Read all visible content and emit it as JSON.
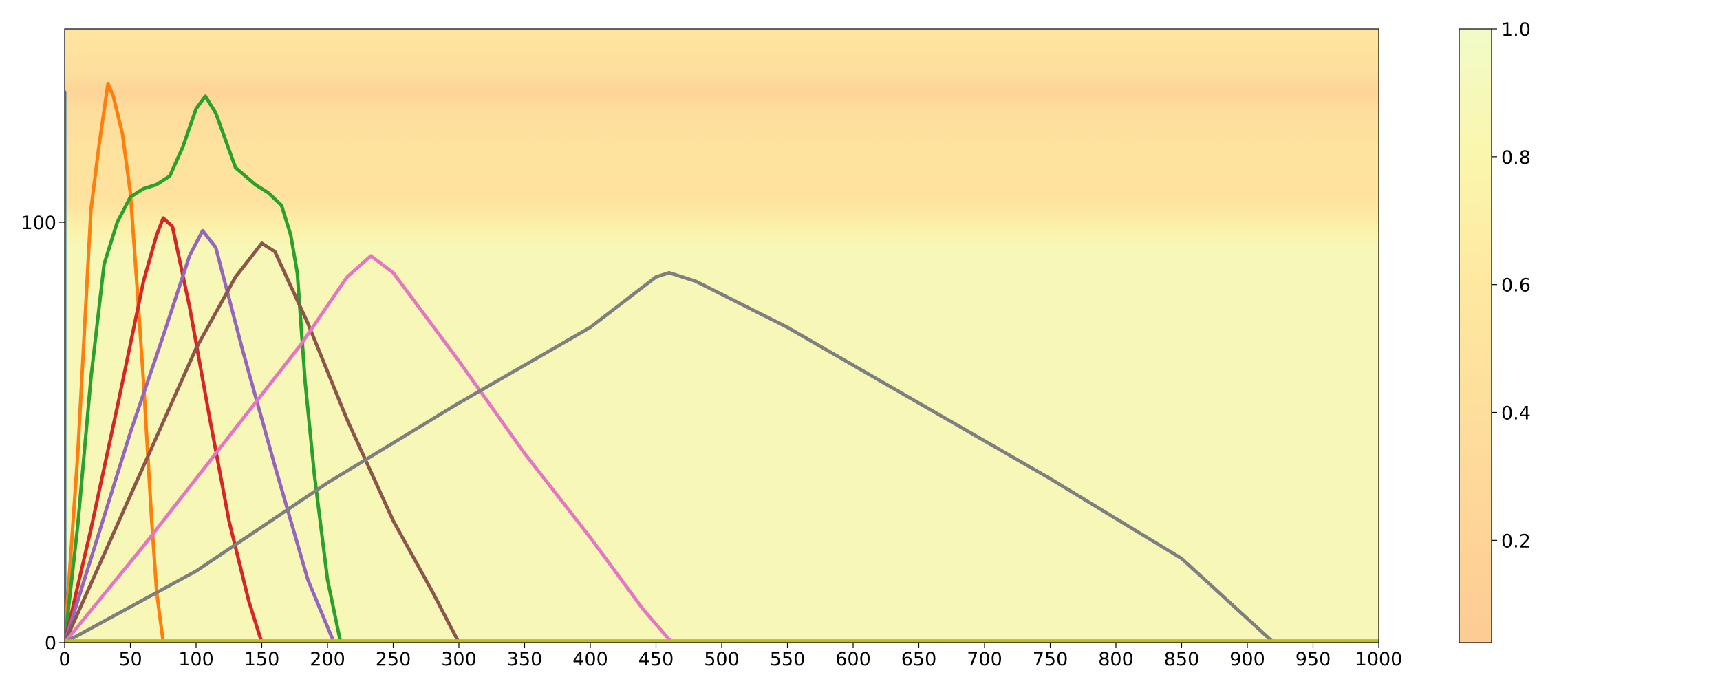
{
  "chart_data": {
    "type": "line",
    "title": "",
    "xlabel": "",
    "ylabel": "",
    "xlim": [
      0,
      1000
    ],
    "ylim": [
      0,
      146
    ],
    "x_ticks": [
      "0",
      "50",
      "100",
      "150",
      "200",
      "250",
      "300",
      "350",
      "400",
      "450",
      "500",
      "550",
      "600",
      "650",
      "700",
      "750",
      "800",
      "850",
      "900",
      "950",
      "1000"
    ],
    "y_ticks": [
      "0",
      "100"
    ],
    "grid": false,
    "legend": "none",
    "background": {
      "type": "heatmap",
      "description_of_scale": "colorbar",
      "colorbar_ticks": [
        "0.2",
        "0.4",
        "0.6",
        "0.8",
        "1.0"
      ],
      "colorbar_range": [
        0.04,
        1.0
      ],
      "profile_y_to_value": [
        {
          "y": 0,
          "v": 0.88
        },
        {
          "y": 94,
          "v": 0.88
        },
        {
          "y": 99,
          "v": 0.72
        },
        {
          "y": 105,
          "v": 0.48
        },
        {
          "y": 116,
          "v": 0.5
        },
        {
          "y": 127,
          "v": 0.38
        },
        {
          "y": 131,
          "v": 0.18
        },
        {
          "y": 135,
          "v": 0.4
        },
        {
          "y": 146,
          "v": 0.54
        }
      ],
      "colormap_stops": [
        {
          "v": 0.04,
          "color": "#fdcb94"
        },
        {
          "v": 0.3,
          "color": "#fed99a"
        },
        {
          "v": 0.6,
          "color": "#fee8a0"
        },
        {
          "v": 0.8,
          "color": "#fbf6ad"
        },
        {
          "v": 1.0,
          "color": "#f1fbc8"
        }
      ]
    },
    "series": [
      {
        "color": "#1f77b4",
        "points": [
          [
            0,
            0
          ],
          [
            0,
            131
          ]
        ]
      },
      {
        "color": "#ff7f0e",
        "points": [
          [
            0,
            0
          ],
          [
            10,
            45
          ],
          [
            20,
            103
          ],
          [
            26,
            118
          ],
          [
            33,
            133
          ],
          [
            37,
            130
          ],
          [
            44,
            121
          ],
          [
            50,
            107
          ],
          [
            55,
            85
          ],
          [
            60,
            62
          ],
          [
            66,
            30
          ],
          [
            70,
            12
          ],
          [
            75,
            0
          ]
        ]
      },
      {
        "color": "#2ca02c",
        "points": [
          [
            0,
            0
          ],
          [
            10,
            28
          ],
          [
            20,
            63
          ],
          [
            30,
            90
          ],
          [
            40,
            100
          ],
          [
            50,
            106
          ],
          [
            60,
            108
          ],
          [
            70,
            109
          ],
          [
            80,
            111
          ],
          [
            90,
            118
          ],
          [
            100,
            127
          ],
          [
            107,
            130
          ],
          [
            115,
            126
          ],
          [
            130,
            113
          ],
          [
            145,
            109
          ],
          [
            155,
            107
          ],
          [
            165,
            104
          ],
          [
            172,
            97
          ],
          [
            177,
            88
          ],
          [
            183,
            62
          ],
          [
            190,
            40
          ],
          [
            200,
            15
          ],
          [
            210,
            0
          ],
          [
            215,
            0
          ]
        ]
      },
      {
        "color": "#d62728",
        "points": [
          [
            0,
            0
          ],
          [
            20,
            27
          ],
          [
            40,
            56
          ],
          [
            60,
            86
          ],
          [
            70,
            97
          ],
          [
            75,
            101
          ],
          [
            82,
            99
          ],
          [
            95,
            80
          ],
          [
            110,
            54
          ],
          [
            125,
            29
          ],
          [
            140,
            10
          ],
          [
            150,
            0
          ]
        ]
      },
      {
        "color": "#9467bd",
        "points": [
          [
            0,
            0
          ],
          [
            25,
            25
          ],
          [
            50,
            50
          ],
          [
            75,
            73
          ],
          [
            95,
            92
          ],
          [
            105,
            98
          ],
          [
            115,
            94
          ],
          [
            135,
            70
          ],
          [
            160,
            42
          ],
          [
            185,
            15
          ],
          [
            205,
            0
          ],
          [
            210,
            0
          ]
        ]
      },
      {
        "color": "#8c564b",
        "points": [
          [
            0,
            0
          ],
          [
            50,
            35
          ],
          [
            100,
            70
          ],
          [
            130,
            87
          ],
          [
            150,
            95
          ],
          [
            160,
            93
          ],
          [
            185,
            76
          ],
          [
            215,
            53
          ],
          [
            250,
            29
          ],
          [
            280,
            12
          ],
          [
            300,
            0
          ]
        ]
      },
      {
        "color": "#e377c2",
        "points": [
          [
            0,
            0
          ],
          [
            60,
            23
          ],
          [
            120,
            47
          ],
          [
            180,
            71
          ],
          [
            215,
            87
          ],
          [
            233,
            92
          ],
          [
            250,
            88
          ],
          [
            300,
            67
          ],
          [
            350,
            45
          ],
          [
            400,
            25
          ],
          [
            440,
            8
          ],
          [
            462,
            0
          ]
        ]
      },
      {
        "color": "#7f7f7f",
        "points": [
          [
            0,
            0
          ],
          [
            100,
            17
          ],
          [
            200,
            38
          ],
          [
            300,
            57
          ],
          [
            400,
            75
          ],
          [
            450,
            87
          ],
          [
            460,
            88
          ],
          [
            480,
            86
          ],
          [
            550,
            75
          ],
          [
            650,
            57
          ],
          [
            750,
            39
          ],
          [
            850,
            20
          ],
          [
            920,
            0
          ]
        ]
      },
      {
        "color": "#bcbd22",
        "points": [
          [
            0,
            0.4
          ],
          [
            1000,
            0.4
          ]
        ]
      }
    ]
  }
}
